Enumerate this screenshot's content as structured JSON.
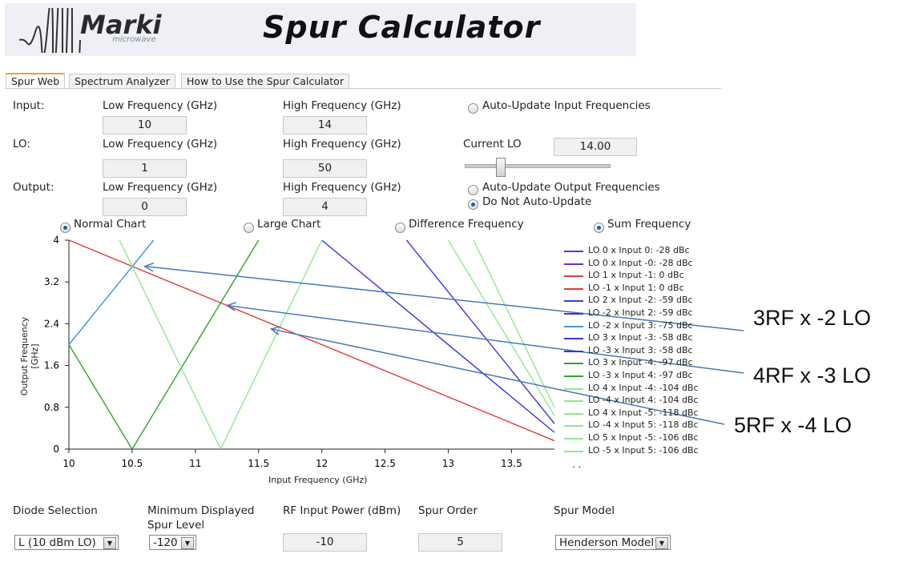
{
  "banner": {
    "logo": "Marki",
    "logo_sub": "microwave",
    "title": "Spur Calculator"
  },
  "tabs": [
    "Spur Web",
    "Spectrum Analyzer",
    "How to Use the Spur Calculator"
  ],
  "input": {
    "label": "Input:",
    "low_label": "Low Frequency (GHz)",
    "high_label": "High Frequency (GHz)",
    "low": "10",
    "high": "14",
    "auto_update": "Auto-Update Input Frequencies"
  },
  "lo": {
    "label": "LO:",
    "low_label": "Low Frequency (GHz)",
    "high_label": "High Frequency (GHz)",
    "low": "1",
    "high": "50",
    "current_label": "Current LO",
    "current": "14.00"
  },
  "output": {
    "label": "Output:",
    "low_label": "Low Frequency (GHz)",
    "high_label": "High Frequency (GHz)",
    "low": "0",
    "high": "4",
    "auto_update": "Auto-Update Output Frequencies",
    "no_auto": "Do Not Auto-Update"
  },
  "chart_options": {
    "normal": "Normal Chart",
    "large": "Large Chart",
    "difference": "Difference Frequency",
    "sum": "Sum Frequency"
  },
  "chart_data": {
    "type": "line",
    "xlabel": "Input Frequency (GHz)",
    "ylabel": "Output Frequency [GHz]",
    "xlim": [
      10,
      13.84
    ],
    "ylim": [
      0,
      4
    ],
    "xticks": [
      "10",
      "10.5",
      "11",
      "11.5",
      "12",
      "12.5",
      "13",
      "13.5"
    ],
    "yticks": [
      "0",
      "0.8",
      "1.6",
      "2.4",
      "3.2",
      "4"
    ],
    "series": [
      {
        "name": "LO 0 x Input 0: -28 dBc",
        "color": "#6a2fc9",
        "points": []
      },
      {
        "name": "LO 0 x Input -0: -28 dBc",
        "color": "#6a2fc9",
        "points": []
      },
      {
        "name": "LO 1 x Input -1: 0 dBc",
        "color": "#e03a3a",
        "points": []
      },
      {
        "name": "LO -1 x Input 1: 0 dBc",
        "color": "#e03a3a",
        "points": [
          [
            10,
            4
          ],
          [
            13.84,
            0.16
          ]
        ]
      },
      {
        "name": "LO 2 x Input -2: -59 dBc",
        "color": "#3a3ad8",
        "points": []
      },
      {
        "name": "LO -2 x Input 2: -59 dBc",
        "color": "#3a3ad8",
        "points": []
      },
      {
        "name": "LO -2 x Input 3: -75 dBc",
        "color": "#3a96e0",
        "points": [
          [
            10,
            2
          ],
          [
            10.67,
            4
          ]
        ]
      },
      {
        "name": "LO 3 x Input -3: -58 dBc",
        "color": "#3535e0",
        "points": [
          [
            12,
            4
          ],
          [
            13.84,
            0.32
          ]
        ]
      },
      {
        "name": "LO -3 x Input 3: -58 dBc",
        "color": "#3535e0",
        "points": [
          [
            12.67,
            4
          ],
          [
            13.84,
            0.49
          ]
        ]
      },
      {
        "name": "LO 3 x Input -4: -97 dBc",
        "color": "#2aa62a",
        "points": [
          [
            10,
            2
          ],
          [
            10.5,
            0
          ]
        ]
      },
      {
        "name": "LO -3 x Input 4: -97 dBc",
        "color": "#2aa62a",
        "points": [
          [
            10.5,
            0
          ],
          [
            11.5,
            4
          ]
        ]
      },
      {
        "name": "LO 4 x Input -4: -104 dBc",
        "color": "#8fe88f",
        "points": []
      },
      {
        "name": "LO -4 x Input 4: -104 dBc",
        "color": "#8fe88f",
        "points": []
      },
      {
        "name": "LO 4 x Input -5: -118 dBc",
        "color": "#8fe88f",
        "points": [
          [
            10.4,
            4
          ],
          [
            11.2,
            0
          ]
        ]
      },
      {
        "name": "LO -4 x Input 5: -118 dBc",
        "color": "#8fe88f",
        "points": [
          [
            11.2,
            0
          ],
          [
            12,
            4
          ]
        ]
      },
      {
        "name": "LO 5 x Input -5: -106 dBc",
        "color": "#8fe88f",
        "points": [
          [
            13,
            4
          ],
          [
            13.84,
            0.64
          ]
        ]
      },
      {
        "name": "LO -5 x Input 5: -106 dBc",
        "color": "#8fe88f",
        "points": [
          [
            13.2,
            4
          ],
          [
            13.84,
            0.8
          ]
        ]
      }
    ]
  },
  "annotations": [
    {
      "text": "3RF x -2 LO",
      "target": [
        10.6,
        3.5
      ]
    },
    {
      "text": "4RF x -3 LO",
      "target": [
        11.25,
        2.75
      ]
    },
    {
      "text": "5RF x -4 LO",
      "target": [
        11.6,
        2.3
      ]
    }
  ],
  "bottom": {
    "diode_label": "Diode Selection",
    "diode_value": "L (10 dBm LO)",
    "min_level_label_1": "Minimum Displayed",
    "min_level_label_2": "Spur Level",
    "min_level_value": "-120",
    "rf_power_label": "RF Input Power (dBm)",
    "rf_power_value": "-10",
    "spur_order_label": "Spur Order",
    "spur_order_value": "5",
    "spur_model_label": "Spur Model",
    "spur_model_value": "Henderson Model"
  }
}
